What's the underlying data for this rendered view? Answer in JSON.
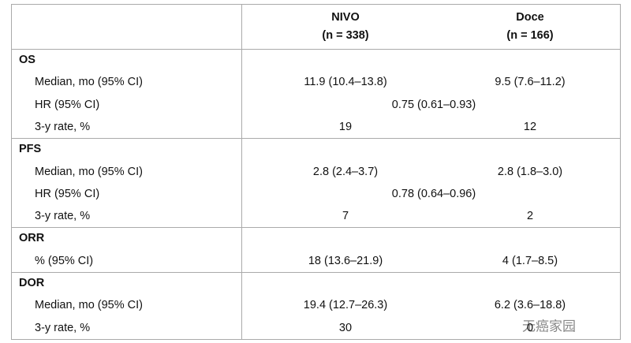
{
  "header": {
    "columns": [
      {
        "name": "NIVO",
        "n": "(n = 338)"
      },
      {
        "name": "Doce",
        "n": "(n = 166)"
      }
    ]
  },
  "sections": [
    {
      "title": "OS",
      "rows": [
        {
          "label": "Median, mo (95% CI)",
          "values": [
            "11.9 (10.4–13.8)",
            "9.5 (7.6–11.2)"
          ]
        },
        {
          "label": "HR (95% CI)",
          "combined": "0.75 (0.61–0.93)"
        },
        {
          "label": "3-y rate, %",
          "values": [
            "19",
            "12"
          ]
        }
      ]
    },
    {
      "title": "PFS",
      "rows": [
        {
          "label": "Median, mo (95% CI)",
          "values": [
            "2.8 (2.4–3.7)",
            "2.8 (1.8–3.0)"
          ]
        },
        {
          "label": "HR (95% CI)",
          "combined": "0.78 (0.64–0.96)"
        },
        {
          "label": "3-y rate, %",
          "values": [
            "7",
            "2"
          ]
        }
      ]
    },
    {
      "title": "ORR",
      "rows": [
        {
          "label": "% (95% CI)",
          "values": [
            "18 (13.6–21.9)",
            "4 (1.7–8.5)"
          ]
        }
      ]
    },
    {
      "title": "DOR",
      "rows": [
        {
          "label": "Median, mo (95% CI)",
          "values": [
            "19.4 (12.7–26.3)",
            "6.2 (3.6–18.8)"
          ]
        },
        {
          "label": "3-y rate, %",
          "values": [
            "30",
            "0"
          ]
        }
      ]
    }
  ],
  "watermark": "无癌家园"
}
